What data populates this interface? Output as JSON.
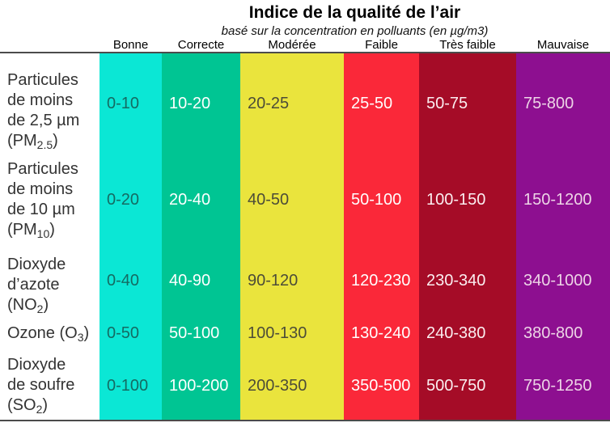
{
  "page": {
    "title": "Indice de la qualité de l’air",
    "subtitle": "basé sur la concentration en polluants (en µg/m3)"
  },
  "columns": [
    {
      "label": "Bonne",
      "color": "#0BE7D5",
      "text_color": "#156B62"
    },
    {
      "label": "Correcte",
      "color": "#00C593",
      "text_color": "#FFFFFF"
    },
    {
      "label": "Modérée",
      "color": "#EAE43D",
      "text_color": "#4C4C38"
    },
    {
      "label": "Faible",
      "color": "#FA2839",
      "text_color": "#FFFFFF"
    },
    {
      "label": "Très faible",
      "color": "#A50C27",
      "text_color": "#FBEEF0"
    },
    {
      "label": "Mauvaise",
      "color": "#8D0F90",
      "text_color": "#EDD4E6"
    }
  ],
  "rows": [
    {
      "name_lines": [
        "Particules",
        "de moins",
        "de 2,5 µm"
      ],
      "formula_pre": "(PM",
      "formula_sub": "2.5",
      "formula_post": ")",
      "values": [
        "0-10",
        "10-20",
        "20-25",
        "25-50",
        "50-75",
        "75-800"
      ]
    },
    {
      "name_lines": [
        "Particules",
        "de moins",
        "de 10 µm"
      ],
      "formula_pre": "(PM",
      "formula_sub": "10",
      "formula_post": ")",
      "values": [
        "0-20",
        "20-40",
        "40-50",
        "50-100",
        "100-150",
        "150-1200"
      ]
    },
    {
      "name_lines": [
        "Dioxyde",
        "d’azote"
      ],
      "formula_pre": "(NO",
      "formula_sub": "2",
      "formula_post": ")",
      "values": [
        "0-40",
        "40-90",
        "90-120",
        "120-230",
        "230-340",
        "340-1000"
      ]
    },
    {
      "name_lines": [],
      "formula_pre": "Ozone (O",
      "formula_sub": "3",
      "formula_post": ")",
      "values": [
        "0-50",
        "50-100",
        "100-130",
        "130-240",
        "240-380",
        "380-800"
      ]
    },
    {
      "name_lines": [
        "Dioxyde",
        "de soufre"
      ],
      "formula_pre": "(SO",
      "formula_sub": "2",
      "formula_post": ")",
      "values": [
        "0-100",
        "100-200",
        "200-350",
        "350-500",
        "500-750",
        "750-1250"
      ]
    }
  ],
  "chart_data": {
    "type": "table",
    "title": "Indice de la qualité de l’air",
    "subtitle": "basé sur la concentration en polluants (en µg/m3)",
    "columns": [
      "Bonne",
      "Correcte",
      "Modérée",
      "Faible",
      "Très faible",
      "Mauvaise"
    ],
    "column_colors": [
      "#0BE7D5",
      "#00C593",
      "#EAE43D",
      "#FA2839",
      "#A50C27",
      "#8D0F90"
    ],
    "rows": [
      {
        "pollutant": "Particules de moins de 2,5 µm (PM2.5)",
        "values": [
          "0-10",
          "10-20",
          "20-25",
          "25-50",
          "50-75",
          "75-800"
        ]
      },
      {
        "pollutant": "Particules de moins de 10 µm (PM10)",
        "values": [
          "0-20",
          "20-40",
          "40-50",
          "50-100",
          "100-150",
          "150-1200"
        ]
      },
      {
        "pollutant": "Dioxyde d’azote (NO2)",
        "values": [
          "0-40",
          "40-90",
          "90-120",
          "120-230",
          "230-340",
          "340-1000"
        ]
      },
      {
        "pollutant": "Ozone (O3)",
        "values": [
          "0-50",
          "50-100",
          "100-130",
          "130-240",
          "240-380",
          "380-800"
        ]
      },
      {
        "pollutant": "Dioxyde de soufre (SO2)",
        "values": [
          "0-100",
          "100-200",
          "200-350",
          "350-500",
          "500-750",
          "750-1250"
        ]
      }
    ]
  }
}
